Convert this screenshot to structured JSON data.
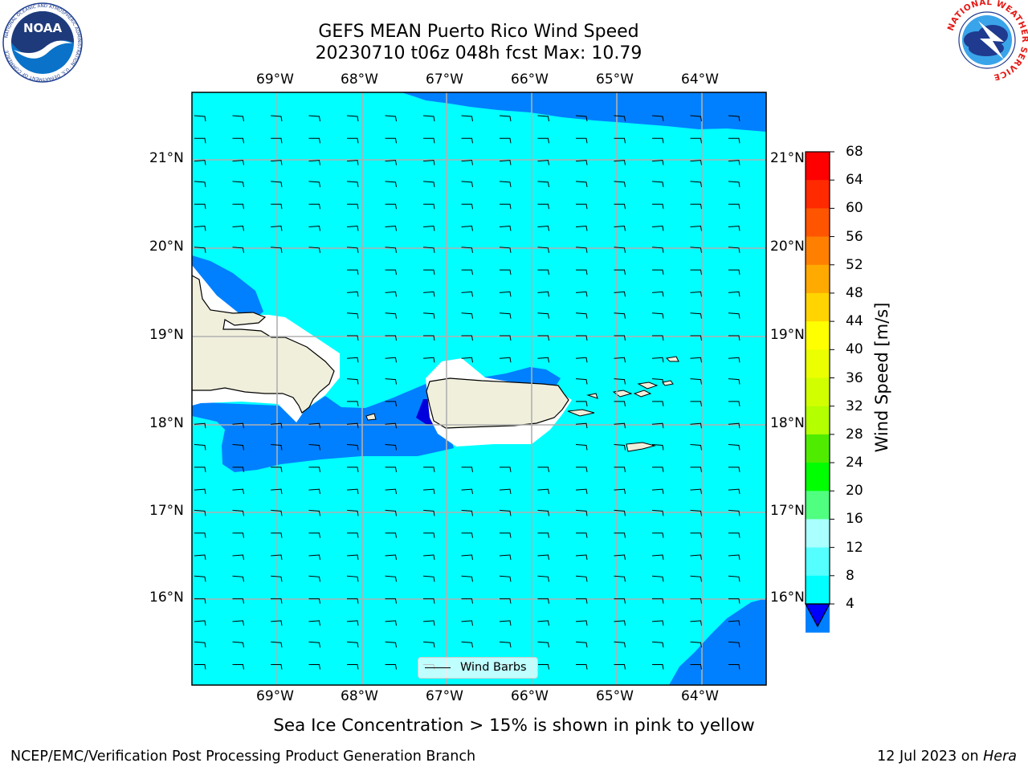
{
  "title": {
    "line1": "GEFS MEAN Puerto Rico Wind Speed",
    "line2": "20230710 t06z 048h fcst   Max: 10.79"
  },
  "map": {
    "lon_labels": [
      "69°W",
      "68°W",
      "67°W",
      "66°W",
      "65°W",
      "64°W"
    ],
    "lat_labels": [
      "21°N",
      "20°N",
      "19°N",
      "18°N",
      "17°N",
      "16°N"
    ],
    "colors": {
      "ocean_8_12": "#00ffff",
      "ocean_4_8": "#0080ff",
      "ocean_lt4": "#0000dd",
      "land": "#f0efdc"
    },
    "legend_label": "Wind Barbs"
  },
  "colorbar": {
    "label": "Wind Speed [m/s]",
    "ticks": [
      "68",
      "64",
      "60",
      "56",
      "52",
      "48",
      "44",
      "40",
      "36",
      "32",
      "28",
      "24",
      "20",
      "16",
      "12",
      "8",
      "4"
    ],
    "colors": [
      "#ff0000",
      "#ff2a00",
      "#ff5500",
      "#ff8000",
      "#ffaa00",
      "#ffd400",
      "#ffff00",
      "#ebff00",
      "#d2ff00",
      "#b4ff00",
      "#50ec00",
      "#00ff00",
      "#50ff80",
      "#aaffff",
      "#55ffff",
      "#00ffff",
      "#0080ff"
    ],
    "under_color": "#0000ff"
  },
  "footer": {
    "note": "Sea Ice Concentration > 15% is shown in pink to yellow",
    "credit": "NCEP/EMC/Verification Post Processing Product Generation Branch",
    "date": "12 Jul 2023 on",
    "host": "Hera"
  },
  "logos": {
    "noaa": "NOAA",
    "noaa_ring": "NATIONAL OCEANIC AND ATMOSPHERIC ADMINISTRATION · U.S. DEPARTMENT OF COMMERCE",
    "nws_ring": "NATIONAL WEATHER SERVICE"
  }
}
